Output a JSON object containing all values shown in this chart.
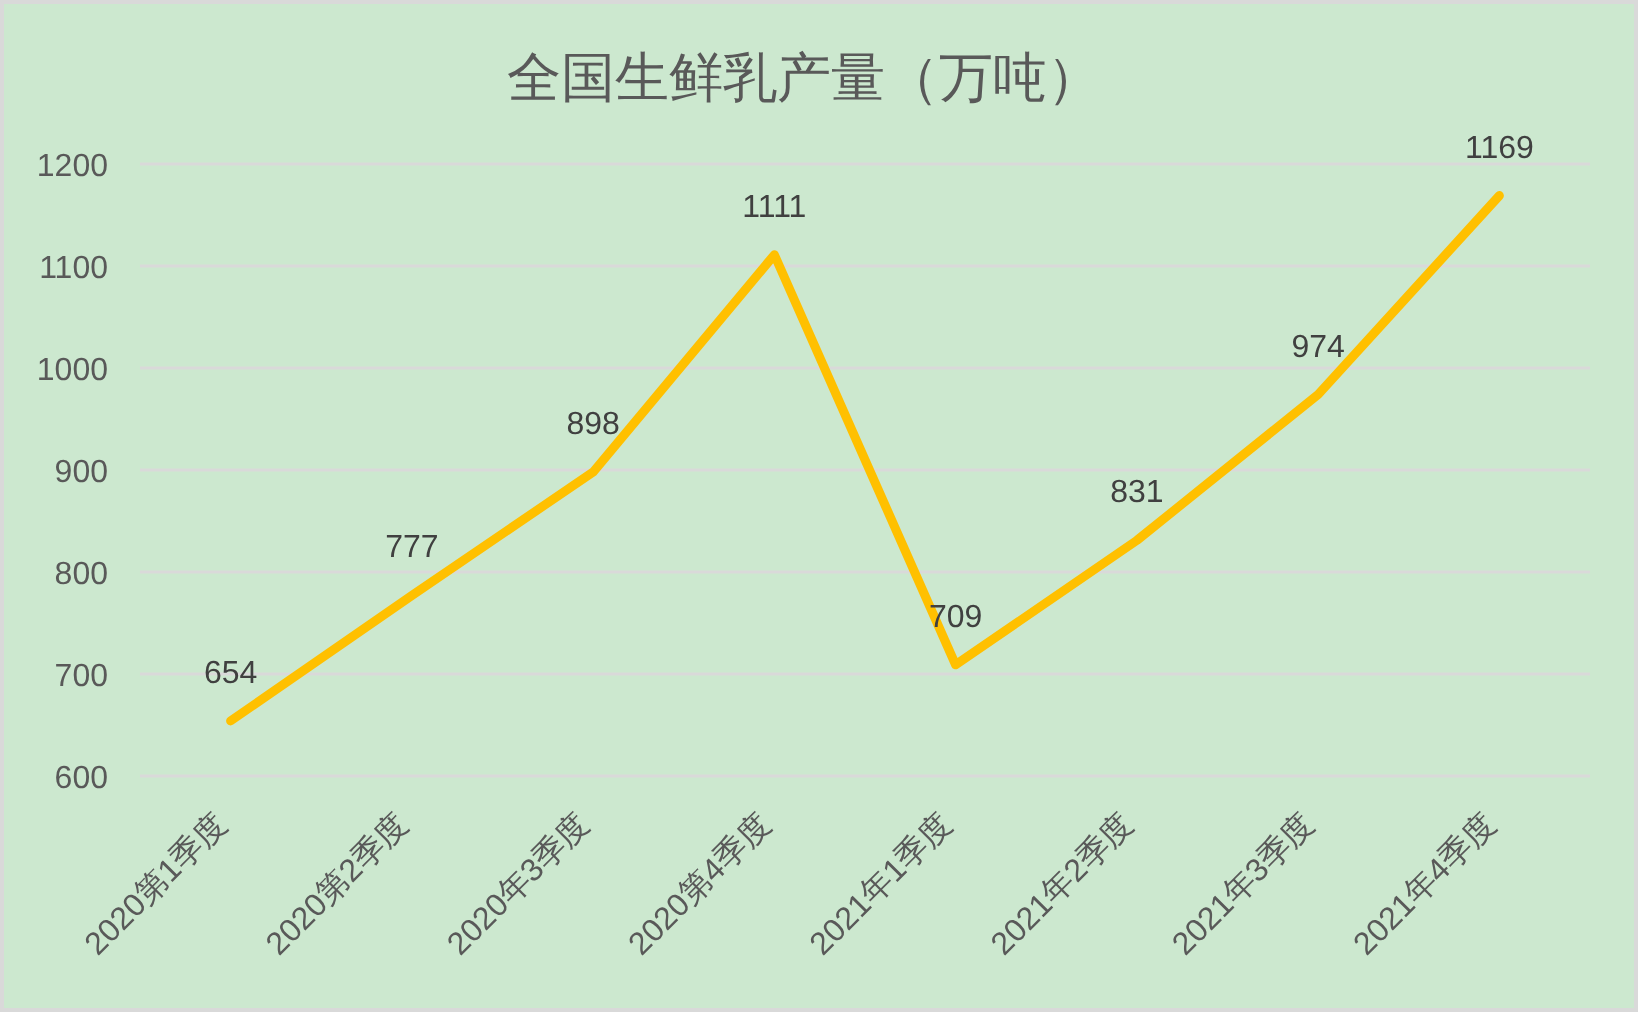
{
  "chart_data": {
    "type": "line",
    "title": "全国生鲜乳产量（万吨）",
    "categories": [
      "2020第1季度",
      "2020第2季度",
      "2020年3季度",
      "2020第4季度",
      "2021年1季度",
      "2021年2季度",
      "2021年3季度",
      "2021年4季度"
    ],
    "series": [
      {
        "color": "#ffc000",
        "values": [
          654,
          777,
          898,
          1111,
          709,
          831,
          974,
          1169
        ]
      }
    ],
    "ylim": [
      600,
      1200
    ],
    "yticks": [
      600,
      700,
      800,
      900,
      1000,
      1100,
      1200
    ],
    "grid": "y",
    "data_labels": true,
    "line_style": "solid"
  }
}
